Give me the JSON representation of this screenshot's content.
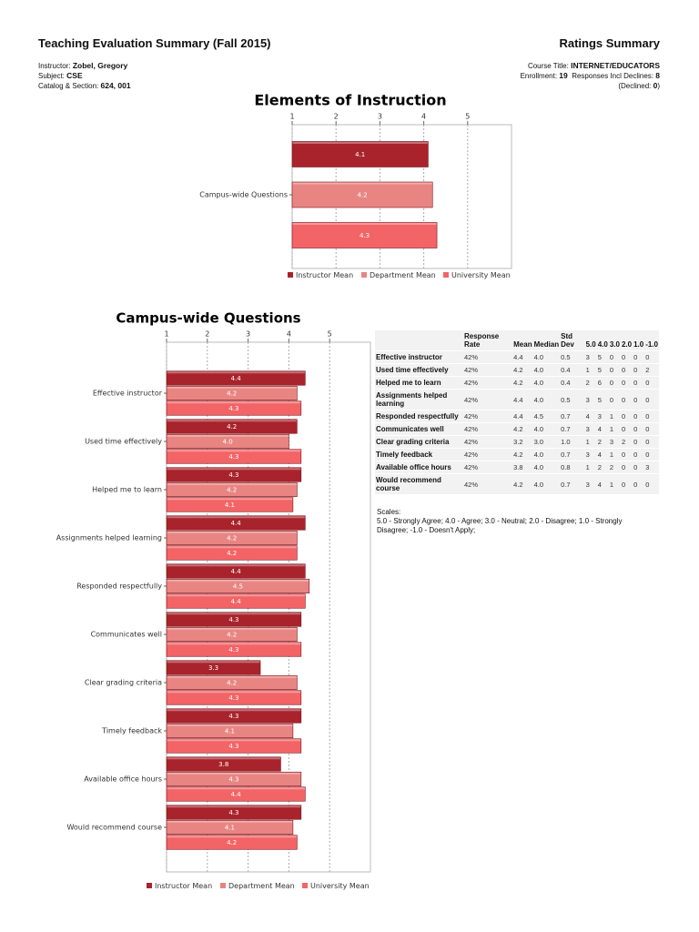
{
  "header": {
    "title": "Teaching Evaluation Summary (Fall 2015)",
    "right_title": "Ratings Summary",
    "instructor_label": "Instructor:",
    "instructor": "Zobel, Gregory",
    "subject_label": "Subject:",
    "subject": "CSE",
    "catalog_label": "Catalog & Section:",
    "catalog": "624, 001",
    "course_title_label": "Course Title:",
    "course_title": "INTERNET/EDUCATORS",
    "enrollment_label": "Enrollment:",
    "enrollment": "19",
    "responses_label": "Responses Incl Declines:",
    "responses": "8",
    "declined_label": "(Declined:",
    "declined": "0",
    "declined_close": ")"
  },
  "chart_data": [
    {
      "type": "hbar",
      "title": "Elements of Instruction",
      "categories": [
        "Campus-wide Questions"
      ],
      "series": [
        {
          "name": "Instructor Mean",
          "color": "#a8232b",
          "values": [
            4.1
          ]
        },
        {
          "name": "Department Mean",
          "color": "#e88582",
          "values": [
            4.2
          ]
        },
        {
          "name": "University Mean",
          "color": "#f36466",
          "values": [
            4.3
          ]
        }
      ],
      "xlim": [
        1,
        6
      ],
      "xticks": [
        1,
        2,
        3,
        4,
        5
      ],
      "grid": true,
      "legend": "bottom"
    },
    {
      "type": "hbar",
      "title": "Campus-wide Questions",
      "categories": [
        "Effective instructor",
        "Used time effectively",
        "Helped me to learn",
        "Assignments helped learning",
        "Responded respectfully",
        "Communicates well",
        "Clear grading criteria",
        "Timely feedback",
        "Available office hours",
        "Would recommend course"
      ],
      "series": [
        {
          "name": "Instructor Mean",
          "color": "#a8232b",
          "values": [
            4.4,
            4.2,
            4.3,
            4.4,
            4.4,
            4.3,
            3.3,
            4.3,
            3.8,
            4.3
          ],
          "value_labels": [
            "4.4",
            "4.2",
            "4.3",
            "4.4",
            "4.4",
            "4.3",
            "3.3",
            "4.3",
            "3.8",
            "4.3"
          ]
        },
        {
          "name": "Department Mean",
          "color": "#e88582",
          "values": [
            4.2,
            4.0,
            4.2,
            4.2,
            4.5,
            4.2,
            4.2,
            4.1,
            4.3,
            4.1
          ],
          "value_labels": [
            "4.2",
            "4.0",
            "4.2",
            "4.2",
            "4.5",
            "4.2",
            "4.2",
            "4.1",
            "4.3",
            "4.1"
          ]
        },
        {
          "name": "University Mean",
          "color": "#f36466",
          "values": [
            4.3,
            4.3,
            4.1,
            4.2,
            4.4,
            4.3,
            4.3,
            4.3,
            4.4,
            4.2
          ],
          "value_labels": [
            "4.3",
            "4.3",
            "4.1",
            "4.2",
            "4.4",
            "4.3",
            "4.3",
            "4.3",
            "4.4",
            "4.2"
          ]
        }
      ],
      "xlim": [
        1,
        6
      ],
      "xticks": [
        1,
        2,
        3,
        4,
        5
      ],
      "grid": true,
      "legend": "bottom"
    }
  ],
  "table": {
    "columns": [
      "Response Rate",
      "Mean",
      "Median",
      "Std Dev",
      "5.0",
      "4.0",
      "3.0",
      "2.0",
      "1.0",
      "-1.0"
    ],
    "rows": [
      [
        "Effective instructor",
        "42%",
        "4.4",
        "4.0",
        "0.5",
        "3",
        "5",
        "0",
        "0",
        "0",
        "0"
      ],
      [
        "Used time effectively",
        "42%",
        "4.2",
        "4.0",
        "0.4",
        "1",
        "5",
        "0",
        "0",
        "0",
        "2"
      ],
      [
        "Helped me to learn",
        "42%",
        "4.2",
        "4.0",
        "0.4",
        "2",
        "6",
        "0",
        "0",
        "0",
        "0"
      ],
      [
        "Assignments helped learning",
        "42%",
        "4.4",
        "4.0",
        "0.5",
        "3",
        "5",
        "0",
        "0",
        "0",
        "0"
      ],
      [
        "Responded respectfully",
        "42%",
        "4.4",
        "4.5",
        "0.7",
        "4",
        "3",
        "1",
        "0",
        "0",
        "0"
      ],
      [
        "Communicates well",
        "42%",
        "4.2",
        "4.0",
        "0.7",
        "3",
        "4",
        "1",
        "0",
        "0",
        "0"
      ],
      [
        "Clear grading criteria",
        "42%",
        "3.2",
        "3.0",
        "1.0",
        "1",
        "2",
        "3",
        "2",
        "0",
        "0"
      ],
      [
        "Timely feedback",
        "42%",
        "4.2",
        "4.0",
        "0.7",
        "3",
        "4",
        "1",
        "0",
        "0",
        "0"
      ],
      [
        "Available office hours",
        "42%",
        "3.8",
        "4.0",
        "0.8",
        "1",
        "2",
        "2",
        "0",
        "0",
        "3"
      ],
      [
        "Would recommend course",
        "42%",
        "4.2",
        "4.0",
        "0.7",
        "3",
        "4",
        "1",
        "0",
        "0",
        "0"
      ]
    ]
  },
  "scales": {
    "title": "Scales:",
    "text": "5.0 - Strongly Agree;  4.0 - Agree;  3.0 - Neutral;  2.0 - Disagree;  1.0 - Strongly Disagree;  -1.0 - Doesn't Apply;"
  }
}
